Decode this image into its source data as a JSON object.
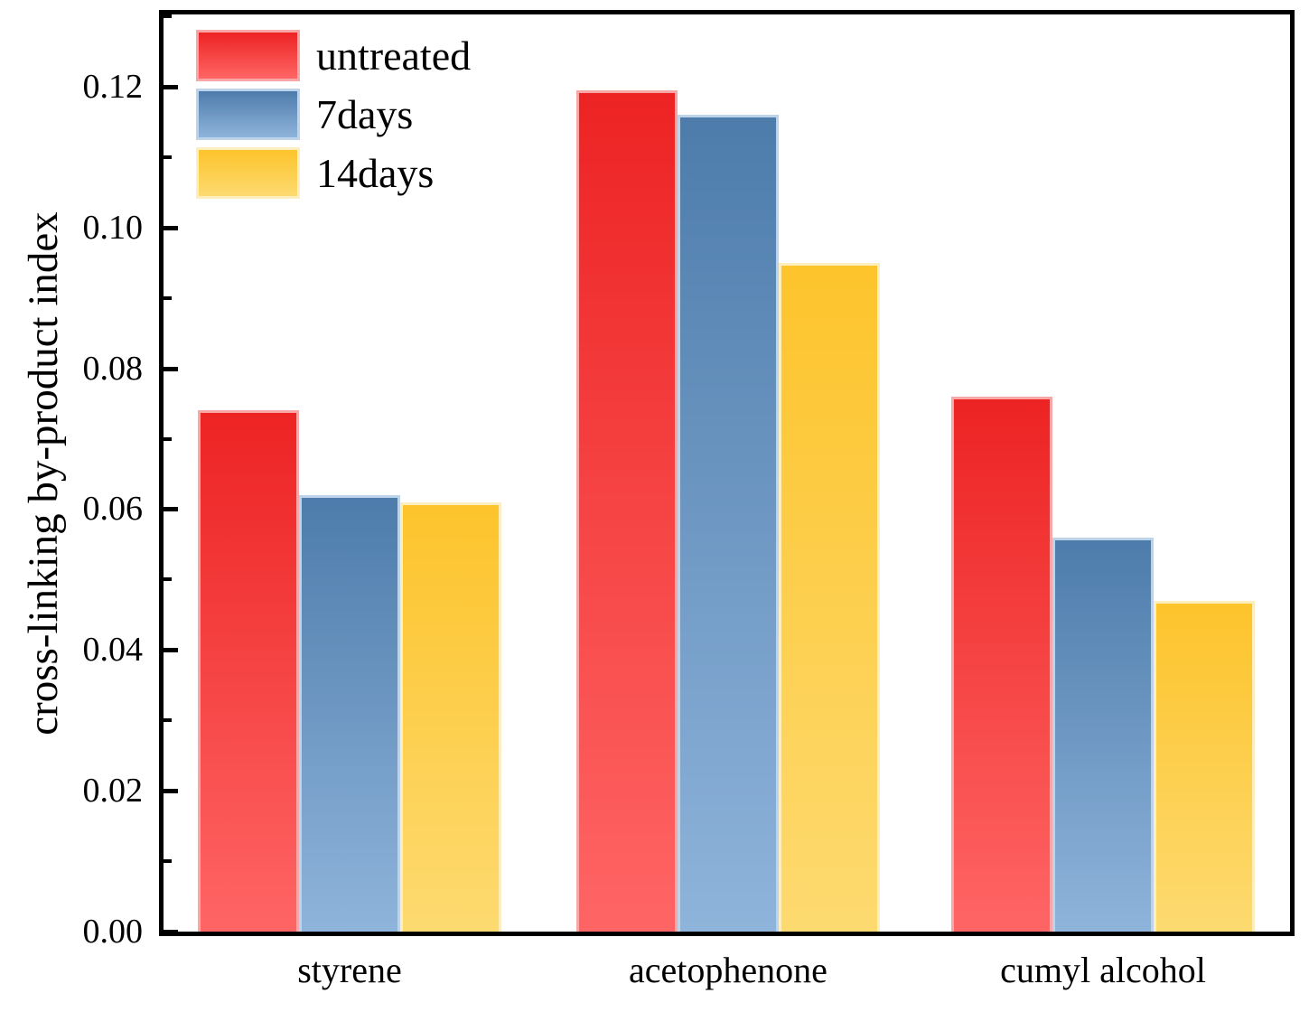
{
  "chart_data": {
    "type": "bar",
    "title": "",
    "xlabel": "",
    "ylabel": "cross-linking by-product index",
    "categories": [
      "styrene",
      "acetophenone",
      "cumyl alcohol"
    ],
    "series": [
      {
        "name": "untreated",
        "values": [
          0.074,
          0.1195,
          0.076
        ],
        "color_top": "#ed2323",
        "color_bottom": "#ff6565",
        "edge_color": "#f9a6a6"
      },
      {
        "name": "7days",
        "values": [
          0.062,
          0.116,
          0.056
        ],
        "color_top": "#4d7cab",
        "color_bottom": "#8fb4db",
        "edge_color": "#bdd3ea"
      },
      {
        "name": "14days",
        "values": [
          0.061,
          0.095,
          0.047
        ],
        "color_top": "#fdc42c",
        "color_bottom": "#fdda70",
        "edge_color": "#fdeec0"
      }
    ],
    "ylim": [
      0,
      0.13
    ],
    "yticks": [
      "0.00",
      "0.02",
      "0.04",
      "0.06",
      "0.08",
      "0.10",
      "0.12"
    ],
    "ytick_values": [
      0,
      0.02,
      0.04,
      0.06,
      0.08,
      0.1,
      0.12
    ],
    "minor_ytick_values": [
      0.01,
      0.03,
      0.05,
      0.07,
      0.09,
      0.11,
      0.13
    ],
    "grid": false,
    "legend_position": "upper-left",
    "axis_color": "#000000",
    "background_color": "#ffffff"
  }
}
